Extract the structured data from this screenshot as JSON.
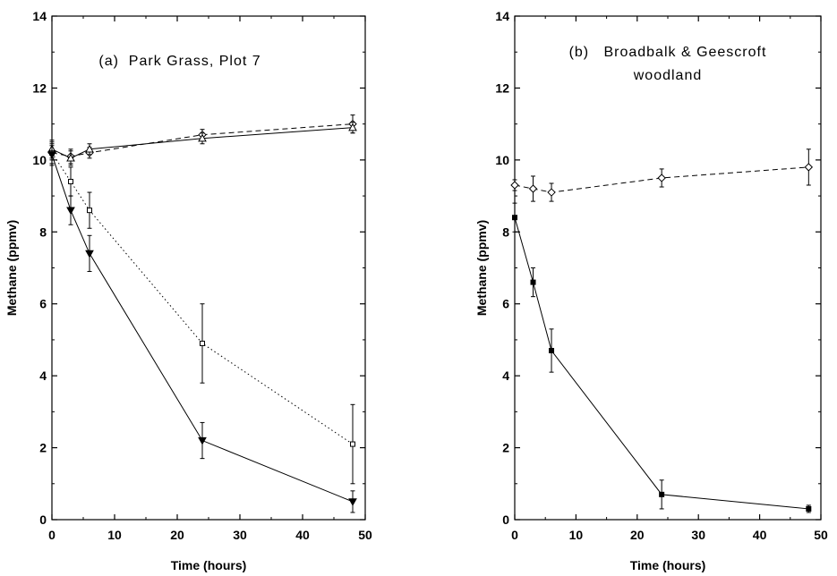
{
  "chart_data": [
    {
      "type": "line",
      "title_lines": [
        "(a)  Park Grass, Plot 7"
      ],
      "xlabel": "Time (hours)",
      "ylabel": "Methane (ppmv)",
      "xlim": [
        0,
        50
      ],
      "ylim": [
        0,
        14
      ],
      "xticks": [
        "0",
        "10",
        "20",
        "30",
        "40",
        "50"
      ],
      "yticks": [
        "0",
        "2",
        "4",
        "6",
        "8",
        "10",
        "12",
        "14"
      ],
      "grid": false,
      "legend": "none",
      "series": [
        {
          "marker": "diamond",
          "line": "dashed",
          "x": [
            0,
            3,
            6,
            24,
            48
          ],
          "y": [
            10.2,
            10.1,
            10.2,
            10.7,
            11.0
          ],
          "err": [
            0.2,
            0.2,
            0.15,
            0.15,
            0.25
          ]
        },
        {
          "marker": "triangle-up",
          "line": "solid",
          "x": [
            0,
            3,
            6,
            24,
            48
          ],
          "y": [
            10.3,
            10.05,
            10.3,
            10.6,
            10.9
          ],
          "err": [
            0.25,
            0.2,
            0.15,
            0.15,
            0.15
          ]
        },
        {
          "marker": "square-open",
          "line": "dotted",
          "x": [
            0,
            3,
            6,
            24,
            48
          ],
          "y": [
            10.2,
            9.4,
            8.6,
            4.9,
            2.1
          ],
          "err": [
            0.3,
            0.4,
            0.5,
            1.1,
            1.1
          ]
        },
        {
          "marker": "triangle-down-filled",
          "line": "solid",
          "x": [
            0,
            3,
            6,
            24,
            48
          ],
          "y": [
            10.15,
            8.6,
            7.4,
            2.2,
            0.5
          ],
          "err": [
            0.3,
            0.4,
            0.5,
            0.5,
            0.3
          ]
        }
      ]
    },
    {
      "type": "line",
      "title_lines": [
        "(b)   Broadbalk & Geescroft",
        "woodland"
      ],
      "xlabel": "Time (hours)",
      "ylabel": "Methane (ppmv)",
      "xlim": [
        0,
        50
      ],
      "ylim": [
        0,
        14
      ],
      "xticks": [
        "0",
        "10",
        "20",
        "30",
        "40",
        "50"
      ],
      "yticks": [
        "0",
        "2",
        "4",
        "6",
        "8",
        "10",
        "12",
        "14"
      ],
      "grid": false,
      "legend": "none",
      "series": [
        {
          "marker": "diamond",
          "line": "dashed",
          "x": [
            0,
            3,
            6,
            24,
            48
          ],
          "y": [
            9.3,
            9.2,
            9.1,
            9.5,
            9.8
          ],
          "err": [
            0.15,
            0.35,
            0.25,
            0.25,
            0.5
          ]
        },
        {
          "marker": "square-filled",
          "line": "solid",
          "x": [
            0,
            3,
            6,
            24,
            48
          ],
          "y": [
            8.4,
            6.6,
            4.7,
            0.7,
            0.3
          ],
          "err": [
            0.4,
            0.4,
            0.6,
            0.4,
            0.1
          ]
        }
      ]
    }
  ]
}
